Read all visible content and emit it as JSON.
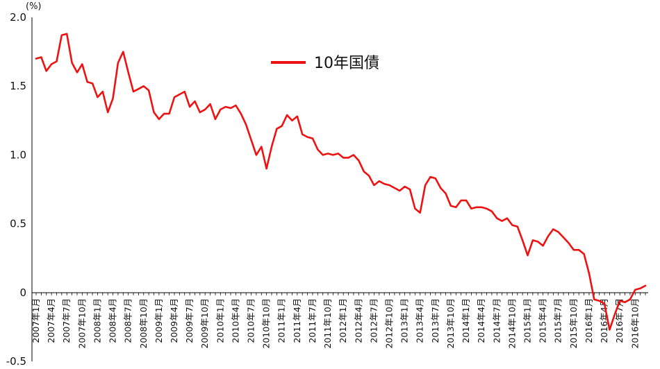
{
  "chart_data": {
    "type": "line",
    "unit_label": "(%)",
    "ylim": [
      -0.5,
      2.0
    ],
    "yticks": [
      "2.0",
      "1.5",
      "1.0",
      "0.5",
      "0",
      "-0.5"
    ],
    "grid": false,
    "legend_position": "top-center",
    "colors": {
      "line": "#ee1111",
      "axis": "#000000"
    },
    "x": [
      "2007年1月",
      "2007年2月",
      "2007年3月",
      "2007年4月",
      "2007年5月",
      "2007年6月",
      "2007年7月",
      "2007年8月",
      "2007年9月",
      "2007年10月",
      "2007年11月",
      "2007年12月",
      "2008年1月",
      "2008年2月",
      "2008年3月",
      "2008年4月",
      "2008年5月",
      "2008年6月",
      "2008年7月",
      "2008年8月",
      "2008年9月",
      "2008年10月",
      "2008年11月",
      "2008年12月",
      "2009年1月",
      "2009年2月",
      "2009年3月",
      "2009年4月",
      "2009年5月",
      "2009年6月",
      "2009年7月",
      "2009年8月",
      "2009年9月",
      "2009年10月",
      "2009年11月",
      "2009年12月",
      "2010年1月",
      "2010年2月",
      "2010年3月",
      "2010年4月",
      "2010年5月",
      "2010年6月",
      "2010年7月",
      "2010年8月",
      "2010年9月",
      "2010年10月",
      "2010年11月",
      "2010年12月",
      "2011年1月",
      "2011年2月",
      "2011年3月",
      "2011年4月",
      "2011年5月",
      "2011年6月",
      "2011年7月",
      "2011年8月",
      "2011年9月",
      "2011年10月",
      "2011年11月",
      "2011年12月",
      "2012年1月",
      "2012年2月",
      "2012年3月",
      "2012年4月",
      "2012年5月",
      "2012年6月",
      "2012年7月",
      "2012年8月",
      "2012年9月",
      "2012年10月",
      "2012年11月",
      "2012年12月",
      "2013年1月",
      "2013年2月",
      "2013年3月",
      "2013年4月",
      "2013年5月",
      "2013年6月",
      "2013年7月",
      "2013年8月",
      "2013年9月",
      "2013年10月",
      "2013年11月",
      "2013年12月",
      "2014年1月",
      "2014年2月",
      "2014年3月",
      "2014年4月",
      "2014年5月",
      "2014年6月",
      "2014年7月",
      "2014年8月",
      "2014年9月",
      "2014年10月",
      "2014年11月",
      "2014年12月",
      "2015年1月",
      "2015年2月",
      "2015年3月",
      "2015年4月",
      "2015年5月",
      "2015年6月",
      "2015年7月",
      "2015年8月",
      "2015年9月",
      "2015年10月",
      "2015年11月",
      "2015年12月",
      "2016年1月",
      "2016年2月",
      "2016年3月",
      "2016年4月",
      "2016年5月",
      "2016年6月",
      "2016年7月",
      "2016年8月",
      "2016年9月",
      "2016年10月",
      "2016年11月",
      "2016年12月"
    ],
    "tick_labels": [
      "2007年1月",
      "2007年4月",
      "2007年7月",
      "2007年10月",
      "2008年1月",
      "2008年4月",
      "2008年7月",
      "2008年10月",
      "2009年1月",
      "2009年4月",
      "2009年7月",
      "2009年10月",
      "2010年1月",
      "2010年4月",
      "2010年7月",
      "2010年10月",
      "2011年1月",
      "2011年4月",
      "2011年7月",
      "2011年10月",
      "2012年1月",
      "2012年4月",
      "2012年7月",
      "2012年10月",
      "2013年1月",
      "2013年4月",
      "2013年7月",
      "2013年10月",
      "2014年1月",
      "2014年4月",
      "2014年7月",
      "2014年10月",
      "2015年1月",
      "2015年4月",
      "2015年7月",
      "2015年10月",
      "2016年1月",
      "2016年4月",
      "2016年7月",
      "2016年10月"
    ],
    "series": [
      {
        "name": "10年国債",
        "values": [
          1.7,
          1.71,
          1.61,
          1.66,
          1.68,
          1.87,
          1.88,
          1.67,
          1.6,
          1.66,
          1.53,
          1.52,
          1.42,
          1.46,
          1.31,
          1.41,
          1.67,
          1.75,
          1.6,
          1.46,
          1.48,
          1.5,
          1.47,
          1.31,
          1.26,
          1.3,
          1.3,
          1.42,
          1.44,
          1.46,
          1.35,
          1.39,
          1.31,
          1.33,
          1.37,
          1.26,
          1.33,
          1.35,
          1.34,
          1.36,
          1.3,
          1.22,
          1.11,
          1.0,
          1.06,
          0.9,
          1.06,
          1.19,
          1.21,
          1.29,
          1.25,
          1.28,
          1.15,
          1.13,
          1.12,
          1.04,
          1.0,
          1.01,
          1.0,
          1.01,
          0.98,
          0.98,
          1.0,
          0.96,
          0.88,
          0.85,
          0.78,
          0.81,
          0.79,
          0.78,
          0.76,
          0.74,
          0.77,
          0.75,
          0.61,
          0.58,
          0.78,
          0.84,
          0.83,
          0.76,
          0.72,
          0.63,
          0.62,
          0.67,
          0.67,
          0.61,
          0.62,
          0.62,
          0.61,
          0.59,
          0.54,
          0.52,
          0.54,
          0.49,
          0.48,
          0.38,
          0.27,
          0.38,
          0.37,
          0.34,
          0.41,
          0.46,
          0.44,
          0.4,
          0.36,
          0.31,
          0.31,
          0.28,
          0.14,
          -0.05,
          -0.06,
          -0.08,
          -0.27,
          -0.16,
          -0.06,
          -0.07,
          -0.05,
          0.02,
          0.03,
          0.05
        ]
      }
    ]
  }
}
